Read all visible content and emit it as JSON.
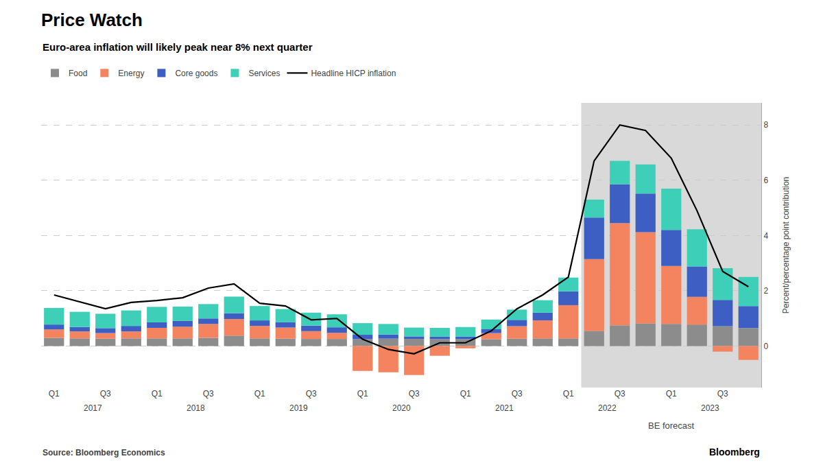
{
  "chart_data": {
    "type": "bar",
    "title": "Price Watch",
    "subtitle": "Euro-area inflation will likely peak near 8% next quarter",
    "source": "Source: Bloomberg Economics",
    "credit": "Bloomberg",
    "y_label": "Percent/percentage point contribution",
    "stacked": true,
    "grid": true,
    "legend": "top",
    "background_color": "#ffffff",
    "categories": [
      "Q1",
      null,
      "Q3",
      null,
      "Q1",
      null,
      "Q3",
      null,
      "Q1",
      null,
      "Q3",
      null,
      "Q1",
      null,
      "Q3",
      null,
      "Q1",
      null,
      "Q3",
      null,
      "Q1",
      null,
      "Q3",
      null,
      "Q1",
      null,
      "Q3",
      null
    ],
    "category_groups": [
      "2017",
      "2018",
      "2019",
      "2020",
      "2021",
      "2022",
      "2023"
    ],
    "forecast": {
      "label": "BE forecast",
      "start_index": 21,
      "color": "#d9d9d9"
    },
    "series": [
      {
        "name": "Food",
        "type": "bar",
        "color": "#8c8c8c",
        "values": [
          0.3,
          0.28,
          0.27,
          0.28,
          0.28,
          0.28,
          0.3,
          0.38,
          0.28,
          0.27,
          0.26,
          0.26,
          0.25,
          0.27,
          0.26,
          0.25,
          0.25,
          0.25,
          0.27,
          0.28,
          0.28,
          0.55,
          0.75,
          0.82,
          0.8,
          0.78,
          0.72,
          0.65
        ]
      },
      {
        "name": "Energy",
        "type": "bar",
        "color": "#f4845f",
        "values": [
          0.3,
          0.25,
          0.2,
          0.25,
          0.38,
          0.42,
          0.5,
          0.6,
          0.45,
          0.4,
          0.28,
          0.22,
          -0.9,
          -0.95,
          -1.05,
          -0.35,
          -0.08,
          0.22,
          0.45,
          0.65,
          1.2,
          2.6,
          3.7,
          3.3,
          2.1,
          1.0,
          -0.2,
          -0.5
        ]
      },
      {
        "name": "Core goods",
        "type": "bar",
        "color": "#3d5fc4",
        "values": [
          0.18,
          0.16,
          0.18,
          0.2,
          0.2,
          0.21,
          0.2,
          0.21,
          0.2,
          0.2,
          0.2,
          0.2,
          0.16,
          0.15,
          0.09,
          0.09,
          0.09,
          0.14,
          0.23,
          0.28,
          0.5,
          1.5,
          1.4,
          1.4,
          1.3,
          1.1,
          0.95,
          0.8
        ]
      },
      {
        "name": "Services",
        "type": "bar",
        "color": "#3ecfb8",
        "values": [
          0.6,
          0.55,
          0.52,
          0.56,
          0.56,
          0.52,
          0.52,
          0.6,
          0.52,
          0.47,
          0.47,
          0.47,
          0.42,
          0.38,
          0.32,
          0.32,
          0.35,
          0.35,
          0.37,
          0.45,
          0.5,
          0.65,
          0.85,
          1.05,
          1.5,
          1.35,
          1.15,
          1.05
        ]
      },
      {
        "name": "Headline HICP inflation",
        "type": "line",
        "color": "#000000",
        "values": [
          1.85,
          1.6,
          1.35,
          1.58,
          1.65,
          1.75,
          2.1,
          2.25,
          1.55,
          1.45,
          0.95,
          1.0,
          0.25,
          -0.12,
          -0.28,
          0.12,
          0.12,
          0.55,
          1.35,
          1.85,
          2.5,
          6.7,
          8.0,
          7.8,
          6.8,
          4.9,
          2.7,
          2.15
        ]
      }
    ],
    "ylim": [
      -1.5,
      8.8
    ],
    "yticks": [
      0,
      2,
      4,
      6,
      8
    ]
  }
}
